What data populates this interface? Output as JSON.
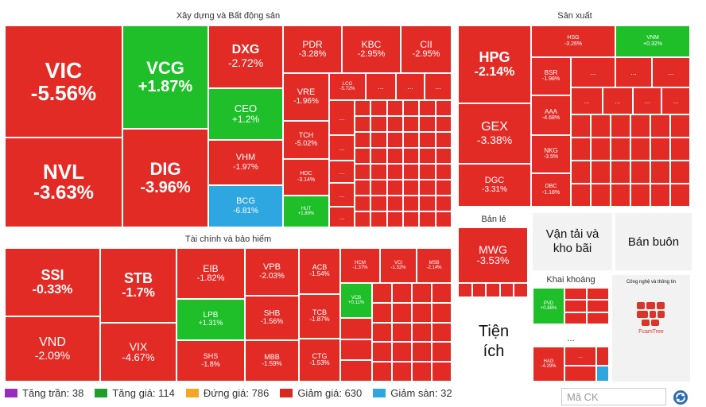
{
  "sections": {
    "xd": {
      "title": "Xây dựng và Bất động sản"
    },
    "sx": {
      "title": "Sản xuất"
    },
    "tc": {
      "title": "Tài chính và bảo hiểm"
    },
    "bl": {
      "title": "Bản lẻ"
    },
    "vt": {
      "title": "Vận tải và kho bãi"
    },
    "bb": {
      "title": "Bán buôn"
    },
    "kk": {
      "title": "Khai khoáng"
    },
    "cn": {
      "title": "Công nghệ và thông tin"
    },
    "ti": {
      "title": "Tiện ích"
    },
    "other": {
      "title": "..."
    }
  },
  "tiles": {
    "vic": {
      "sym": "VIC",
      "pct": "-5.56%"
    },
    "nvl": {
      "sym": "NVL",
      "pct": "-3.63%"
    },
    "vcg": {
      "sym": "VCG",
      "pct": "+1.87%"
    },
    "dig": {
      "sym": "DIG",
      "pct": "-3.96%"
    },
    "dxg": {
      "sym": "DXG",
      "pct": "-2.72%"
    },
    "ceo": {
      "sym": "CEO",
      "pct": "+1.2%"
    },
    "vhm": {
      "sym": "VHM",
      "pct": "-1.97%"
    },
    "bcg": {
      "sym": "BCG",
      "pct": "-6.81%"
    },
    "pdr": {
      "sym": "PDR",
      "pct": "-3.28%"
    },
    "kbc": {
      "sym": "KBC",
      "pct": "-2.95%"
    },
    "cii": {
      "sym": "CII",
      "pct": "-2.95%"
    },
    "vre": {
      "sym": "VRE",
      "pct": "-1.96%"
    },
    "lcg": {
      "sym": "LCG",
      "pct": "-5.72%"
    },
    "tch": {
      "sym": "TCH",
      "pct": "-5.02%"
    },
    "hdc": {
      "sym": "HDC",
      "pct": "-3.14%"
    },
    "hut": {
      "sym": "HUT",
      "pct": "+1.89%"
    },
    "hpg": {
      "sym": "HPG",
      "pct": "-2.14%"
    },
    "gex": {
      "sym": "GEX",
      "pct": "-3.38%"
    },
    "dgc": {
      "sym": "DGC",
      "pct": "-3.31%"
    },
    "hsg": {
      "sym": "HSG",
      "pct": "-3.26%"
    },
    "vnm": {
      "sym": "VNM",
      "pct": "+0.32%"
    },
    "bsr": {
      "sym": "BSR",
      "pct": "-1.98%"
    },
    "aaa": {
      "sym": "AAA",
      "pct": "-4.68%"
    },
    "nkg": {
      "sym": "NKG",
      "pct": "-3.5%"
    },
    "dbc": {
      "sym": "DBC",
      "pct": "-1.18%"
    },
    "ssi": {
      "sym": "SSI",
      "pct": "-0.33%"
    },
    "vnd": {
      "sym": "VND",
      "pct": "-2.09%"
    },
    "stb": {
      "sym": "STB",
      "pct": "-1.7%"
    },
    "vix": {
      "sym": "VIX",
      "pct": "-4.67%"
    },
    "eib": {
      "sym": "EIB",
      "pct": "-1.82%"
    },
    "lpb": {
      "sym": "LPB",
      "pct": "+1.31%"
    },
    "shs": {
      "sym": "SHS",
      "pct": "-1.8%"
    },
    "vpb": {
      "sym": "VPB",
      "pct": "-2.03%"
    },
    "shb": {
      "sym": "SHB",
      "pct": "-1.56%"
    },
    "mbb": {
      "sym": "MBB",
      "pct": "-1.59%"
    },
    "acb": {
      "sym": "ACB",
      "pct": "-1.54%"
    },
    "tcb": {
      "sym": "TCB",
      "pct": "-1.87%"
    },
    "ctg": {
      "sym": "CTG",
      "pct": "-1.53%"
    },
    "hcm": {
      "sym": "HCM",
      "pct": "-1.37%"
    },
    "vci": {
      "sym": "VCI",
      "pct": "-1.32%"
    },
    "msb": {
      "sym": "MSB",
      "pct": "-2.14%"
    },
    "vcb": {
      "sym": "VCB",
      "pct": "+0.11%"
    },
    "mwg": {
      "sym": "MWG",
      "pct": "-3.53%"
    },
    "pvd": {
      "sym": "PVD",
      "pct": "+0.88%"
    },
    "hag": {
      "sym": "HAG",
      "pct": "-4.29%"
    }
  },
  "dots": "...",
  "cn_brand": "FcamTree",
  "legend": [
    {
      "label": "Tăng trần: 38",
      "color": "#9b2bbf"
    },
    {
      "label": "Tăng giá: 114",
      "color": "#1e9e2a"
    },
    {
      "label": "Đứng giá: 786",
      "color": "#f5a623"
    },
    {
      "label": "Giảm giá: 630",
      "color": "#d42a22"
    },
    {
      "label": "Giảm sàn: 32",
      "color": "#2ea7e0"
    }
  ],
  "search": {
    "placeholder": "Mã CK"
  },
  "colors": {
    "down": "#e32b26",
    "up": "#1fbf2a",
    "floor": "#2ea7e0",
    "ref": "#f5b642",
    "ceil": "#9b2bbf"
  }
}
